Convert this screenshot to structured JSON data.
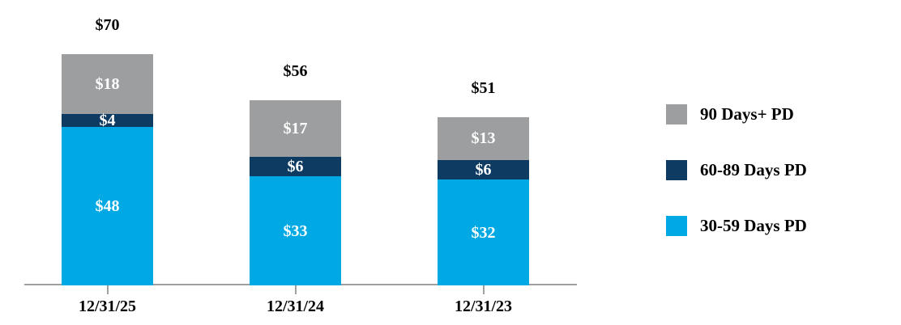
{
  "chart_data": {
    "type": "bar",
    "stacked": true,
    "title": "",
    "xlabel": "",
    "ylabel": "",
    "categories": [
      "12/31/25",
      "12/31/24",
      "12/31/23"
    ],
    "series": [
      {
        "name": "30-59 Days PD",
        "color": "#00A9E4",
        "values": [
          48,
          33,
          32
        ],
        "labels": [
          "$48",
          "$33",
          "$32"
        ]
      },
      {
        "name": "60-89 Days PD",
        "color": "#0D3B61",
        "values": [
          4,
          6,
          6
        ],
        "labels": [
          "$4",
          "$6",
          "$6"
        ]
      },
      {
        "name": "90 Days+ PD",
        "color": "#9C9EA0",
        "values": [
          18,
          17,
          13
        ],
        "labels": [
          "$18",
          "$17",
          "$13"
        ]
      }
    ],
    "totals": {
      "values": [
        70,
        56,
        51
      ],
      "labels": [
        "$70",
        "$56",
        "$51"
      ]
    },
    "value_prefix": "$",
    "ylim": [
      0,
      70
    ],
    "grid": false,
    "legend_position": "right",
    "legend": [
      {
        "label": "90 Days+ PD",
        "color": "#9C9EA0"
      },
      {
        "label": "60-89 Days PD",
        "color": "#0D3B61"
      },
      {
        "label": "30-59 Days PD",
        "color": "#00A9E4"
      }
    ],
    "axis_color": "#A0A0A0",
    "total_label_color": "#000000",
    "segment_label_color": "#FFFFFF"
  }
}
